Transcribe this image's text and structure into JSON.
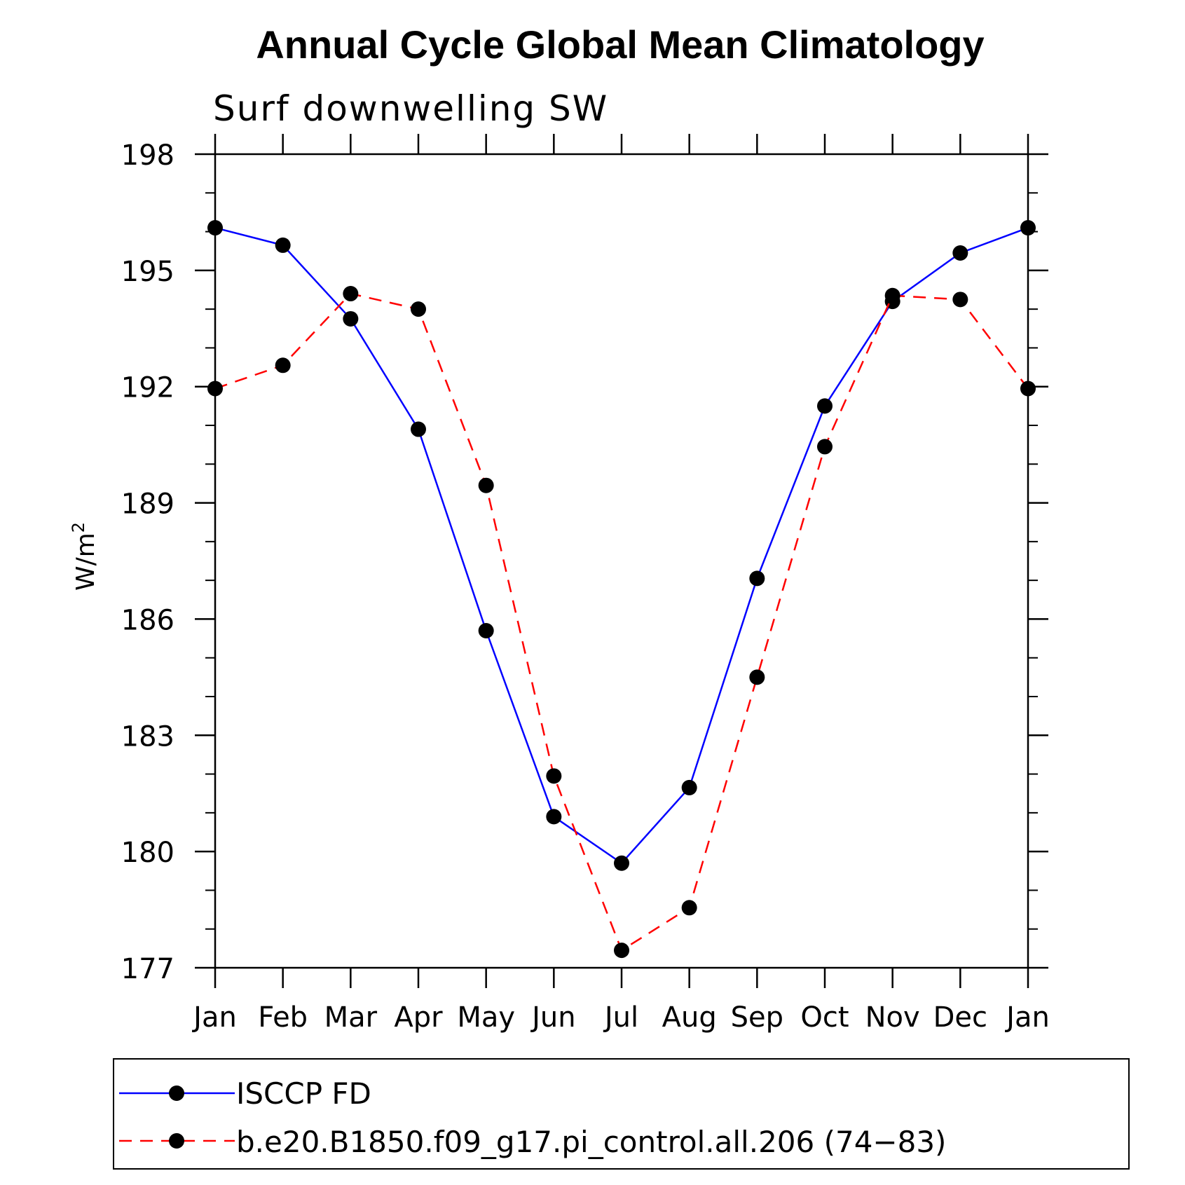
{
  "chart_data": {
    "type": "line",
    "title": "Annual Cycle Global Mean Climatology",
    "subtitle": "Surf downwelling SW",
    "xlabel": "",
    "ylabel": "W/m",
    "ylabel_superscript": "2",
    "categories": [
      "Jan",
      "Feb",
      "Mar",
      "Apr",
      "May",
      "Jun",
      "Jul",
      "Aug",
      "Sep",
      "Oct",
      "Nov",
      "Dec",
      "Jan"
    ],
    "ylim": [
      177,
      198
    ],
    "yticks": [
      177,
      180,
      183,
      186,
      189,
      192,
      195,
      198
    ],
    "y_minor_step": 1,
    "legend_position": "bottom",
    "series": [
      {
        "name": "ISCCP FD",
        "color": "#0000ff",
        "dash": "solid",
        "marker": "circle",
        "values": [
          196.1,
          195.65,
          193.75,
          190.9,
          185.7,
          180.9,
          179.7,
          181.65,
          187.05,
          191.5,
          194.2,
          195.45,
          196.1
        ]
      },
      {
        "name": "b.e20.B1850.f09_g17.pi_control.all.206 (74−83)",
        "color": "#ff0000",
        "dash": "dashed",
        "marker": "circle",
        "values": [
          191.95,
          192.55,
          194.4,
          194.0,
          189.45,
          181.95,
          177.45,
          178.55,
          184.5,
          190.45,
          194.35,
          194.25,
          191.95
        ]
      }
    ]
  }
}
